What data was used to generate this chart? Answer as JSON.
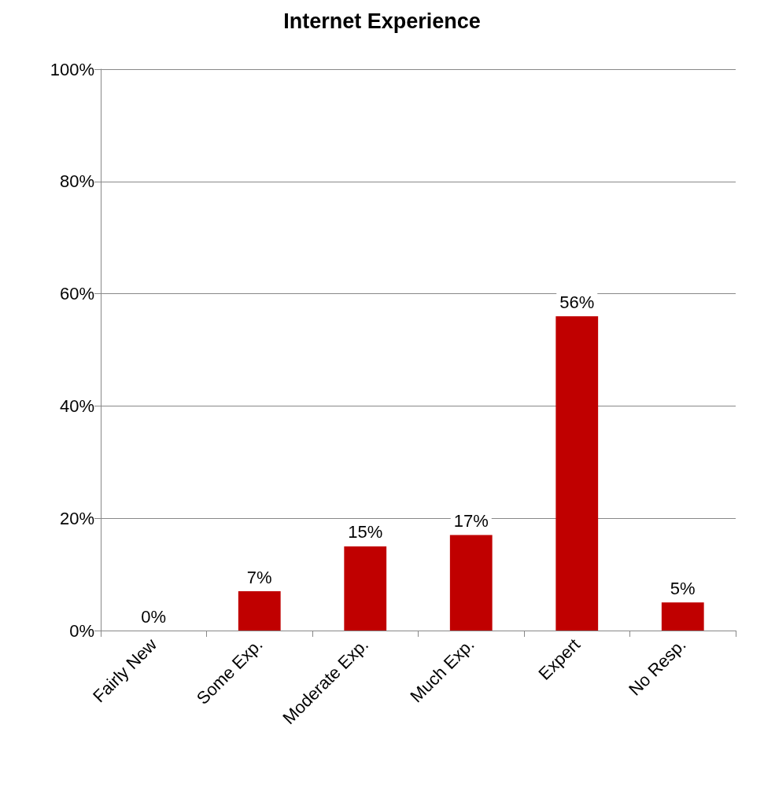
{
  "chart_data": {
    "type": "bar",
    "title": "Internet Experience",
    "categories": [
      "Fairly New",
      "Some Exp.",
      "Moderate Exp.",
      "Much Exp.",
      "Expert",
      "No Resp."
    ],
    "values": [
      0,
      7,
      15,
      17,
      56,
      5
    ],
    "value_labels": [
      "0%",
      "7%",
      "15%",
      "17%",
      "56%",
      "5%"
    ],
    "color": "#c00000",
    "ylim": [
      0,
      100
    ],
    "yticks": [
      {
        "value": 0,
        "label": "0%"
      },
      {
        "value": 20,
        "label": "20%"
      },
      {
        "value": 40,
        "label": "40%"
      },
      {
        "value": 60,
        "label": "60%"
      },
      {
        "value": 80,
        "label": "80%"
      },
      {
        "value": 100,
        "label": "100%"
      }
    ],
    "grid": "y"
  }
}
